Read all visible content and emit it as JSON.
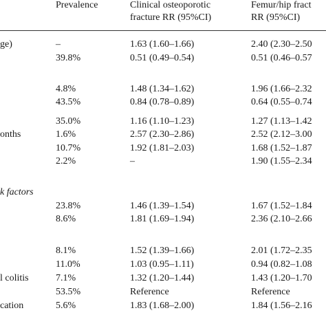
{
  "header": {
    "prevalence": "Prevalence",
    "clinical_line1": "Clinical osteoporotic",
    "clinical_line2": "fracture RR (95%CI)",
    "femur_line1": "Femur/hip fract",
    "femur_line2": "RR (95%CI)"
  },
  "rows": [
    {
      "label": "ge)",
      "prevalence": "–",
      "clinical": "1.63 (1.60–1.66)",
      "femur": "2.40 (2.30–2.50"
    },
    {
      "label": "",
      "prevalence": "39.8%",
      "clinical": "0.51 (0.49–0.54)",
      "femur": "0.51 (0.46–0.57"
    },
    {
      "label": "",
      "prevalence": "4.8%",
      "clinical": "1.48 (1.34–1.62)",
      "femur": "1.96 (1.66–2.32"
    },
    {
      "label": "",
      "prevalence": "43.5%",
      "clinical": "0.84 (0.78–0.89)",
      "femur": "0.64 (0.55–0.74"
    },
    {
      "label": "",
      "prevalence": "35.0%",
      "clinical": "1.16 (1.10–1.23)",
      "femur": "1.27 (1.13–1.42"
    },
    {
      "label": "onths",
      "prevalence": "1.6%",
      "clinical": "2.57 (2.30–2.86)",
      "femur": "2.52 (2.12–3.00"
    },
    {
      "label": "",
      "prevalence": "10.7%",
      "clinical": "1.92 (1.81–2.03)",
      "femur": "1.68 (1.52–1.87"
    },
    {
      "label": "",
      "prevalence": "2.2%",
      "clinical": "–",
      "femur": "1.90 (1.55–2.34"
    },
    {
      "label": "k factors",
      "prevalence": "",
      "clinical": "",
      "femur": ""
    },
    {
      "label": "",
      "prevalence": "23.8%",
      "clinical": "1.46 (1.39–1.54)",
      "femur": "1.67 (1.52–1.84"
    },
    {
      "label": "",
      "prevalence": "8.6%",
      "clinical": "1.81 (1.69–1.94)",
      "femur": "2.36 (2.10–2.66"
    },
    {
      "label": "",
      "prevalence": "8.1%",
      "clinical": "1.52 (1.39–1.66)",
      "femur": "2.01 (1.72–2.35"
    },
    {
      "label": "",
      "prevalence": "11.0%",
      "clinical": "1.03 (0.95–1.11)",
      "femur": "0.94 (0.82–1.08"
    },
    {
      "label": "l colitis",
      "prevalence": "7.1%",
      "clinical": "1.32 (1.20–1.44)",
      "femur": "1.43 (1.20–1.70"
    },
    {
      "label": "",
      "prevalence": "53.5%",
      "clinical": "Reference",
      "femur": "Reference"
    },
    {
      "label": "cation",
      "prevalence": "5.6%",
      "clinical": "1.83 (1.68–2.00)",
      "femur": "1.84 (1.56–2.16"
    }
  ]
}
